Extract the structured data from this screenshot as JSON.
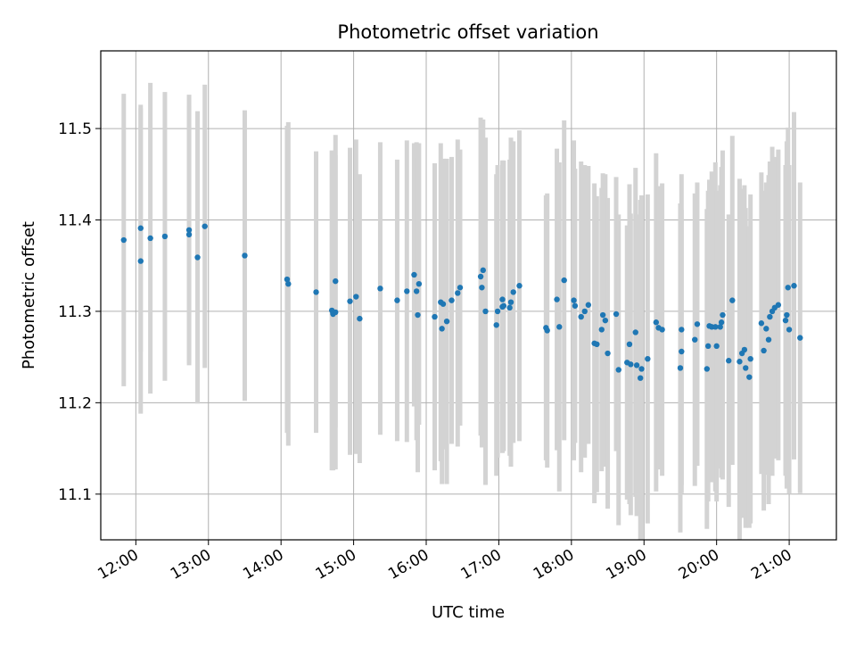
{
  "chart_data": {
    "type": "scatter",
    "title": "Photometric offset variation",
    "xlabel": "UTC time",
    "ylabel": "Photometric offset",
    "xlim": [
      "11:31",
      "21:39"
    ],
    "ylim": [
      11.05,
      11.585
    ],
    "x_ticks": [
      "12:00",
      "13:00",
      "14:00",
      "15:00",
      "16:00",
      "17:00",
      "18:00",
      "19:00",
      "20:00",
      "21:00"
    ],
    "y_ticks": [
      "11.1",
      "11.2",
      "11.3",
      "11.4",
      "11.5"
    ],
    "grid": true,
    "marker_color": "#1f77b4",
    "errorbar_color": "#d3d3d3",
    "x": [
      "11:50",
      "12:04",
      "12:04",
      "12:12",
      "12:24",
      "12:44",
      "12:44",
      "12:51",
      "12:57",
      "13:30",
      "14:05",
      "14:06",
      "14:29",
      "14:42",
      "14:43",
      "14:43",
      "14:45",
      "14:45",
      "14:57",
      "15:02",
      "15:05",
      "15:22",
      "15:36",
      "15:44",
      "15:50",
      "15:52",
      "15:53",
      "15:54",
      "16:07",
      "16:12",
      "16:13",
      "16:14",
      "16:17",
      "16:21",
      "16:26",
      "16:28",
      "16:45",
      "16:46",
      "16:47",
      "16:49",
      "16:58",
      "16:59",
      "17:03",
      "17:03",
      "17:04",
      "17:09",
      "17:10",
      "17:12",
      "17:17",
      "17:39",
      "17:40",
      "17:48",
      "17:50",
      "17:54",
      "18:02",
      "18:03",
      "18:08",
      "18:11",
      "18:14",
      "18:19",
      "18:21",
      "18:25",
      "18:26",
      "18:28",
      "18:30",
      "18:37",
      "18:39",
      "18:46",
      "18:48",
      "18:49",
      "18:53",
      "18:54",
      "18:57",
      "18:58",
      "19:03",
      "19:10",
      "19:12",
      "19:15",
      "19:30",
      "19:31",
      "19:31",
      "19:42",
      "19:44",
      "19:52",
      "19:53",
      "19:54",
      "19:56",
      "19:59",
      "20:00",
      "20:03",
      "20:04",
      "20:05",
      "20:10",
      "20:13",
      "20:19",
      "20:21",
      "20:23",
      "20:24",
      "20:27",
      "20:28",
      "20:37",
      "20:39",
      "20:41",
      "20:43",
      "20:44",
      "20:46",
      "20:48",
      "20:51",
      "20:57",
      "20:58",
      "20:59",
      "21:00",
      "21:04",
      "21:09"
    ],
    "y": [
      11.378,
      11.391,
      11.355,
      11.38,
      11.382,
      11.389,
      11.384,
      11.359,
      11.393,
      11.361,
      11.335,
      11.33,
      11.321,
      11.301,
      11.297,
      11.298,
      11.299,
      11.333,
      11.311,
      11.316,
      11.292,
      11.325,
      11.312,
      11.322,
      11.34,
      11.322,
      11.296,
      11.33,
      11.294,
      11.31,
      11.281,
      11.308,
      11.289,
      11.312,
      11.32,
      11.326,
      11.338,
      11.326,
      11.345,
      11.3,
      11.285,
      11.3,
      11.313,
      11.305,
      11.306,
      11.304,
      11.31,
      11.321,
      11.328,
      11.282,
      11.279,
      11.313,
      11.283,
      11.334,
      11.312,
      11.306,
      11.294,
      11.3,
      11.307,
      11.265,
      11.264,
      11.28,
      11.296,
      11.29,
      11.254,
      11.297,
      11.236,
      11.244,
      11.264,
      11.242,
      11.277,
      11.241,
      11.227,
      11.237,
      11.248,
      11.288,
      11.282,
      11.28,
      11.238,
      11.256,
      11.28,
      11.269,
      11.286,
      11.237,
      11.262,
      11.284,
      11.283,
      11.283,
      11.262,
      11.283,
      11.288,
      11.296,
      11.246,
      11.312,
      11.245,
      11.254,
      11.258,
      11.238,
      11.228,
      11.248,
      11.287,
      11.257,
      11.281,
      11.269,
      11.294,
      11.3,
      11.304,
      11.307,
      11.29,
      11.296,
      11.326,
      11.28,
      11.328,
      11.271
    ],
    "yerr": [
      0.16,
      0.135,
      0.167,
      0.17,
      0.158,
      0.148,
      0.14,
      0.16,
      0.155,
      0.159,
      0.168,
      0.177,
      0.154,
      0.175,
      0.17,
      0.172,
      0.172,
      0.16,
      0.168,
      0.172,
      0.158,
      0.16,
      0.154,
      0.165,
      0.144,
      0.163,
      0.172,
      0.154,
      0.168,
      0.174,
      0.17,
      0.159,
      0.178,
      0.157,
      0.168,
      0.151,
      0.174,
      0.175,
      0.165,
      0.19,
      0.165,
      0.16,
      0.152,
      0.16,
      0.159,
      0.162,
      0.18,
      0.165,
      0.17,
      0.145,
      0.15,
      0.165,
      0.18,
      0.175,
      0.175,
      0.15,
      0.17,
      0.16,
      0.152,
      0.175,
      0.162,
      0.155,
      0.155,
      0.16,
      0.17,
      0.15,
      0.17,
      0.15,
      0.175,
      0.165,
      0.18,
      0.165,
      0.195,
      0.19,
      0.18,
      0.185,
      0.155,
      0.16,
      0.18,
      0.155,
      0.17,
      0.16,
      0.155,
      0.175,
      0.17,
      0.16,
      0.17,
      0.18,
      0.17,
      0.155,
      0.17,
      0.18,
      0.16,
      0.18,
      0.2,
      0.18,
      0.18,
      0.175,
      0.165,
      0.18,
      0.165,
      0.175,
      0.16,
      0.18,
      0.17,
      0.18,
      0.165,
      0.17,
      0.17,
      0.19,
      0.175,
      0.18,
      0.19,
      0.17
    ]
  }
}
